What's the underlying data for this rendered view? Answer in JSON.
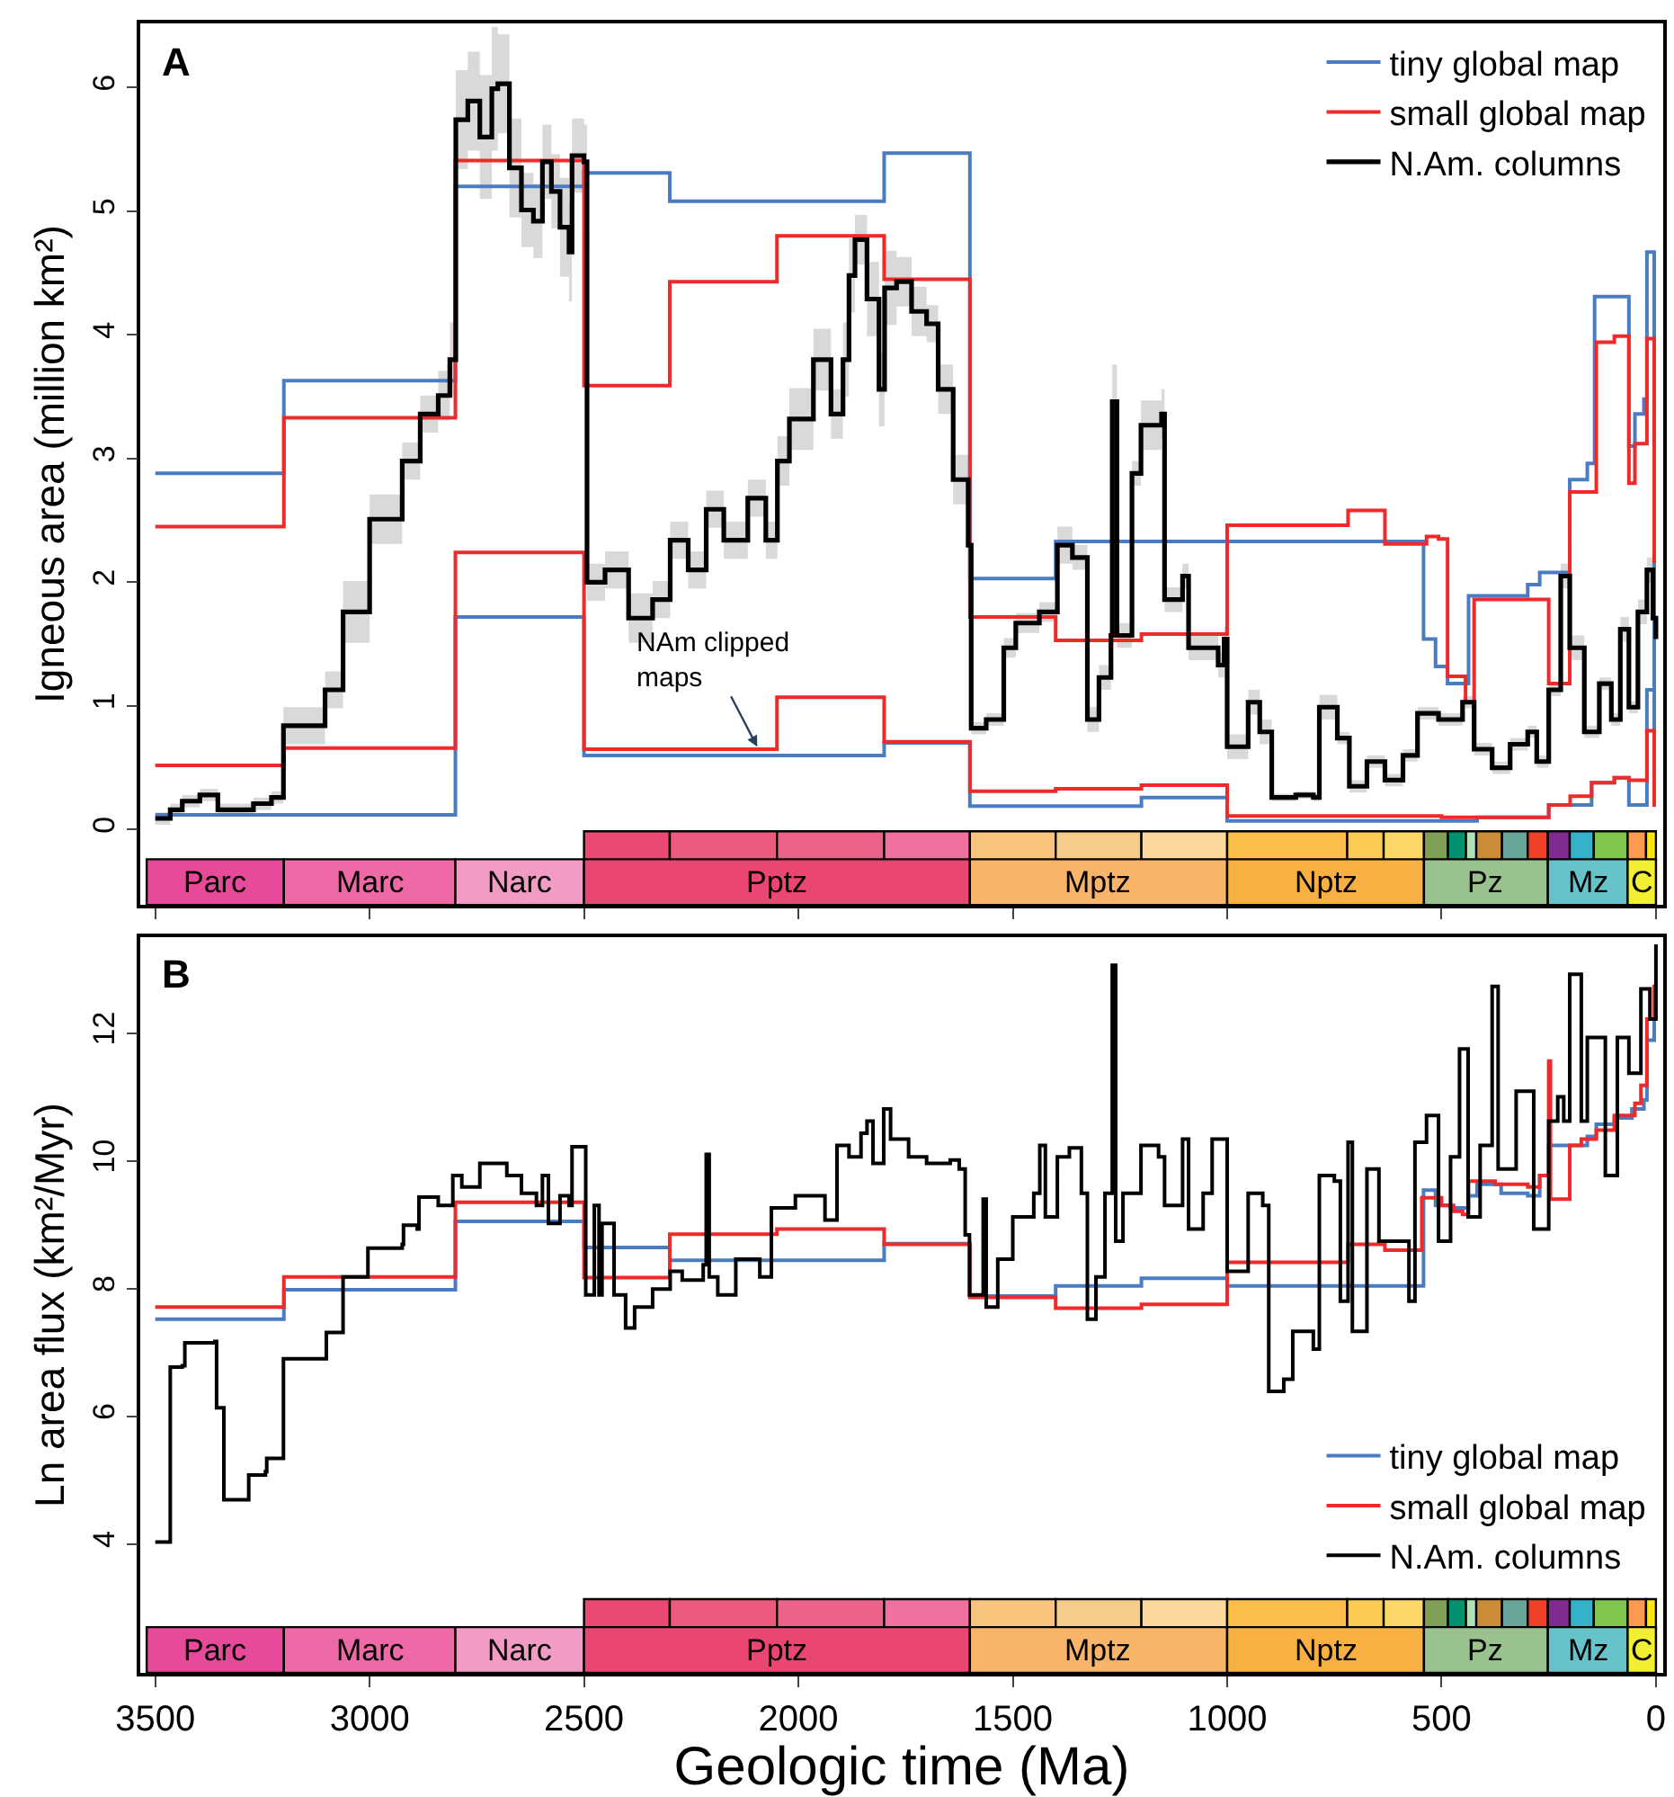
{
  "chart_data": [
    {
      "type": "step",
      "ylabel": "Igneous area (million km²)",
      "xlim": [
        3535,
        -17
      ],
      "ylim": [
        -0.61,
        6.52
      ],
      "xticks": [
        3500,
        3000,
        2500,
        2000,
        1500,
        1000,
        500,
        0
      ],
      "yticks": [
        0,
        1,
        2,
        3,
        4,
        5,
        6
      ],
      "tick_labels": "y",
      "legend": "top right",
      "annotations": [
        "A",
        {
          "text": "NAm clipped\nmaps",
          "x": 2096,
          "y": 0.67
        }
      ],
      "series": [
        {
          "name": "tiny global map",
          "color": "#4a7cc4",
          "x": [
            3500,
            3200,
            2800,
            2500,
            2300,
            1800,
            1600,
            1400,
            1000,
            542,
            514,
            486,
            437,
            299,
            271,
            201,
            160,
            143,
            63,
            49,
            28,
            21,
            4,
            0
          ],
          "values": [
            2.88,
            3.63,
            5.2,
            5.31,
            5.08,
            5.47,
            2.03,
            2.33,
            2.33,
            1.54,
            1.32,
            1.18,
            1.89,
            1.98,
            2.08,
            2.83,
            2.96,
            4.31,
            3.1,
            3.36,
            3.48,
            4.67,
            0.2,
            0.2
          ]
        },
        {
          "name": "small global map",
          "color": "#ee2a2a",
          "x": [
            3500,
            3200,
            2800,
            2500,
            2300,
            2050,
            1800,
            1600,
            1400,
            1200,
            1000,
            718,
            632,
            535,
            507,
            486,
            444,
            424,
            250,
            201,
            139,
            97,
            63,
            49,
            21,
            4,
            0
          ],
          "values": [
            2.45,
            3.33,
            5.41,
            3.59,
            4.43,
            4.8,
            4.45,
            1.72,
            1.53,
            1.58,
            2.46,
            2.58,
            2.31,
            2.37,
            2.35,
            1.24,
            1.03,
            1.86,
            1.18,
            2.73,
            3.94,
            3.99,
            2.8,
            3.12,
            3.97,
            2.17,
            2.17
          ]
        },
        {
          "color": "#4a7cc4",
          "x": [
            3500,
            2800,
            2500,
            1800,
            1600,
            1200,
            1000,
            417,
            250,
            150,
            97,
            63,
            21,
            4,
            0
          ],
          "values": [
            0.12,
            1.72,
            0.6,
            0.7,
            0.19,
            0.26,
            0.07,
            0.1,
            0.2,
            0.38,
            0.42,
            0.2,
            1.13,
            0.2,
            0.2
          ]
        },
        {
          "color": "#ee2a2a",
          "x": [
            3500,
            3200,
            2800,
            2500,
            2050,
            1800,
            1600,
            1400,
            1200,
            1000,
            500,
            250,
            200,
            150,
            97,
            63,
            21,
            4,
            0
          ],
          "values": [
            0.52,
            0.66,
            2.24,
            0.65,
            1.07,
            0.71,
            0.31,
            0.33,
            0.36,
            0.11,
            0.1,
            0.2,
            0.27,
            0.38,
            0.42,
            0.4,
            0.8,
            0.2,
            0.2
          ]
        },
        {
          "name": "N.Am. columns",
          "color": "#000000",
          "x": [
            3500,
            3465,
            3437,
            3396,
            3354,
            3271,
            3229,
            3201,
            3104,
            3062,
            3000,
            2924,
            2882,
            2840,
            2813,
            2799,
            2771,
            2743,
            2715,
            2701,
            2674,
            2646,
            2618,
            2597,
            2576,
            2556,
            2535,
            2528,
            2500,
            2493,
            2451,
            2396,
            2340,
            2299,
            2257,
            2215,
            2174,
            2118,
            2076,
            2049,
            2021,
            1965,
            1924,
            1896,
            1882,
            1868,
            1840,
            1812,
            1799,
            1771,
            1736,
            1701,
            1674,
            1639,
            1604,
            1597,
            1562,
            1521,
            1493,
            1438,
            1396,
            1361,
            1326,
            1299,
            1271,
            1268,
            1257,
            1222,
            1201,
            1153,
            1146,
            1104,
            1090,
            1021,
            1007,
            1000,
            951,
            924,
            896,
            840,
            799,
            785,
            743,
            715,
            674,
            632,
            590,
            556,
            507,
            451,
            424,
            382,
            340,
            299,
            278,
            250,
            222,
            201,
            167,
            132,
            104,
            83,
            63,
            42,
            21,
            7,
            0
          ],
          "values": [
            0.09,
            0.16,
            0.23,
            0.28,
            0.16,
            0.21,
            0.26,
            0.84,
            1.13,
            1.76,
            2.51,
            2.98,
            3.36,
            3.51,
            3.8,
            5.74,
            5.89,
            5.6,
            5.99,
            6.03,
            5.35,
            5.01,
            4.92,
            5.4,
            5.16,
            4.87,
            4.67,
            5.45,
            5.4,
            2.0,
            2.1,
            1.71,
            1.86,
            2.34,
            2.1,
            2.59,
            2.34,
            2.68,
            2.34,
            2.98,
            3.32,
            3.8,
            3.36,
            3.8,
            4.48,
            4.77,
            4.29,
            3.56,
            4.38,
            4.43,
            4.19,
            4.09,
            3.56,
            2.83,
            2.3,
            0.82,
            0.89,
            1.47,
            1.67,
            1.76,
            2.3,
            2.2,
            0.89,
            1.23,
            1.57,
            3.46,
            1.57,
            2.88,
            3.27,
            3.36,
            1.86,
            2.05,
            1.47,
            1.33,
            1.54,
            0.67,
            1.03,
            0.79,
            0.26,
            0.28,
            0.26,
            0.99,
            0.74,
            0.35,
            0.55,
            0.4,
            0.6,
            0.94,
            0.89,
            1.03,
            0.65,
            0.5,
            0.69,
            0.79,
            0.55,
            1.13,
            2.05,
            1.47,
            0.79,
            1.18,
            0.89,
            1.62,
            0.99,
            1.76,
            2.1,
            1.71,
            1.54
          ],
          "lower": [
            0.04,
            0.11,
            0.18,
            0.23,
            0.11,
            0.16,
            0.21,
            0.69,
            0.98,
            1.51,
            2.31,
            2.83,
            3.21,
            3.31,
            3.5,
            5.34,
            5.49,
            5.1,
            5.49,
            5.63,
            4.95,
            4.71,
            4.62,
            5.1,
            4.86,
            4.47,
            4.27,
            5.15,
            5.1,
            1.85,
            1.95,
            1.51,
            1.71,
            2.19,
            1.95,
            2.44,
            2.19,
            2.53,
            2.19,
            2.78,
            3.07,
            3.55,
            3.16,
            3.5,
            4.18,
            4.57,
            3.99,
            3.26,
            4.08,
            4.23,
            3.99,
            3.94,
            3.36,
            2.63,
            2.1,
            0.77,
            0.84,
            1.39,
            1.59,
            1.68,
            2.15,
            2.1,
            0.79,
            1.13,
            1.47,
            3.16,
            1.47,
            2.78,
            3.07,
            3.16,
            1.76,
            1.95,
            1.37,
            1.23,
            1.44,
            0.57,
            0.93,
            0.69,
            0.23,
            0.25,
            0.23,
            0.89,
            0.69,
            0.3,
            0.5,
            0.35,
            0.55,
            0.89,
            0.84,
            0.98,
            0.6,
            0.45,
            0.64,
            0.74,
            0.5,
            1.08,
            1.95,
            1.37,
            0.74,
            1.13,
            0.84,
            1.52,
            0.94,
            1.66,
            2.0,
            1.61,
            1.44
          ],
          "upper": [
            0.14,
            0.21,
            0.28,
            0.33,
            0.21,
            0.26,
            0.31,
            0.99,
            1.28,
            2.01,
            2.71,
            3.13,
            3.51,
            3.71,
            4.1,
            6.14,
            6.29,
            6.1,
            6.49,
            6.43,
            5.75,
            5.31,
            5.22,
            5.7,
            5.46,
            5.27,
            5.07,
            5.75,
            5.7,
            2.15,
            2.25,
            1.91,
            2.01,
            2.49,
            2.25,
            2.74,
            2.49,
            2.83,
            2.49,
            3.18,
            3.57,
            4.05,
            3.56,
            4.1,
            4.78,
            4.97,
            4.59,
            3.86,
            4.68,
            4.63,
            4.39,
            4.24,
            3.76,
            3.03,
            2.5,
            0.87,
            0.94,
            1.55,
            1.75,
            1.84,
            2.45,
            2.3,
            0.99,
            1.33,
            1.67,
            3.76,
            1.67,
            2.98,
            3.47,
            3.56,
            1.96,
            2.15,
            1.57,
            1.43,
            1.64,
            0.77,
            1.13,
            0.89,
            0.29,
            0.31,
            0.29,
            1.09,
            0.79,
            0.4,
            0.6,
            0.45,
            0.65,
            0.99,
            0.94,
            1.08,
            0.7,
            0.55,
            0.74,
            0.84,
            0.6,
            1.18,
            2.15,
            1.57,
            0.84,
            1.23,
            0.94,
            1.72,
            1.04,
            1.86,
            2.2,
            1.81,
            1.64
          ]
        }
      ],
      "bands": [
        {
          "axis": "x",
          "from": 3520,
          "to": 3200,
          "label": "Parc",
          "color": "#e84a9a"
        },
        {
          "axis": "x",
          "from": 3200,
          "to": 2800,
          "label": "Marc",
          "color": "#ee6aa6"
        },
        {
          "axis": "x",
          "from": 2800,
          "to": 2500,
          "label": "Narc",
          "color": "#f29bc4"
        },
        {
          "axis": "x",
          "from": 2500,
          "to": 1600,
          "label": "Pptz",
          "color": "#ea4672"
        },
        {
          "axis": "x",
          "from": 1600,
          "to": 1000,
          "label": "Mptz",
          "color": "#f8b468"
        },
        {
          "axis": "x",
          "from": 1000,
          "to": 541,
          "label": "Nptz",
          "color": "#f9b043"
        },
        {
          "axis": "x",
          "from": 541,
          "to": 252,
          "label": "Pz",
          "color": "#9ac28e"
        },
        {
          "axis": "x",
          "from": 252,
          "to": 66,
          "label": "Mz",
          "color": "#67c3c9"
        },
        {
          "axis": "x",
          "from": 66,
          "to": 0,
          "label": "C",
          "color": "#f2ee32"
        },
        {
          "axis": "x",
          "from": 2500,
          "to": 2300,
          "color": "#ea4a72"
        },
        {
          "axis": "x",
          "from": 2300,
          "to": 2050,
          "color": "#ec5a80"
        },
        {
          "axis": "x",
          "from": 2050,
          "to": 1800,
          "color": "#ed6288"
        },
        {
          "axis": "x",
          "from": 1800,
          "to": 1600,
          "color": "#f070a0"
        },
        {
          "axis": "x",
          "from": 1600,
          "to": 1400,
          "color": "#f8c47e"
        },
        {
          "axis": "x",
          "from": 1400,
          "to": 1200,
          "color": "#f5cc8a"
        },
        {
          "axis": "x",
          "from": 1200,
          "to": 1000,
          "color": "#fcd89a"
        },
        {
          "axis": "x",
          "from": 1000,
          "to": 720,
          "color": "#fbbe48"
        },
        {
          "axis": "x",
          "from": 720,
          "to": 635,
          "color": "#fccb55"
        },
        {
          "axis": "x",
          "from": 635,
          "to": 541,
          "color": "#fcd86a"
        },
        {
          "axis": "x",
          "from": 541,
          "to": 485,
          "color": "#7fa056"
        },
        {
          "axis": "x",
          "from": 485,
          "to": 443,
          "color": "#009270"
        },
        {
          "axis": "x",
          "from": 443,
          "to": 419,
          "color": "#b3e1b6"
        },
        {
          "axis": "x",
          "from": 419,
          "to": 359,
          "color": "#cb8c37"
        },
        {
          "axis": "x",
          "from": 359,
          "to": 299,
          "color": "#67a599"
        },
        {
          "axis": "x",
          "from": 299,
          "to": 252,
          "color": "#f04028"
        },
        {
          "axis": "x",
          "from": 252,
          "to": 201,
          "color": "#812b92"
        },
        {
          "axis": "x",
          "from": 201,
          "to": 145,
          "color": "#34b2c9"
        },
        {
          "axis": "x",
          "from": 145,
          "to": 66,
          "color": "#7fc64e"
        },
        {
          "axis": "x",
          "from": 66,
          "to": 23,
          "color": "#fd9a52"
        },
        {
          "axis": "x",
          "from": 23,
          "to": 0,
          "color": "#ffe619"
        }
      ]
    },
    {
      "type": "step",
      "xlabel": "Geologic time (Ma)",
      "ylabel": "Ln area flux (km²/Myr)",
      "xlim": [
        3535,
        -17
      ],
      "ylim": [
        1.98,
        13.5
      ],
      "xticks": [
        3500,
        3000,
        2500,
        2000,
        1500,
        1000,
        500,
        0
      ],
      "yticks": [
        4,
        6,
        8,
        10,
        12
      ],
      "legend": "bottom right",
      "annotations": [
        "B"
      ],
      "series": [
        {
          "name": "tiny global map",
          "color": "#4a7cc4",
          "x": [
            3500,
            3200,
            2800,
            2500,
            2300,
            1800,
            1600,
            1400,
            1200,
            1000,
            542,
            514,
            479,
            437,
            417,
            361,
            299,
            271,
            250,
            160,
            139,
            97,
            56,
            28,
            21,
            4,
            0
          ],
          "values": [
            7.52,
            7.98,
            9.05,
            8.64,
            8.44,
            8.7,
            7.88,
            8.04,
            8.16,
            8.04,
            9.54,
            9.3,
            9.26,
            9.45,
            9.63,
            9.49,
            9.45,
            9.77,
            10.24,
            10.38,
            10.57,
            10.67,
            10.81,
            10.95,
            11.89,
            12.22,
            12.22
          ]
        },
        {
          "name": "small global map",
          "color": "#ee2a2a",
          "x": [
            3500,
            3200,
            2800,
            2500,
            2300,
            2050,
            1800,
            1600,
            1400,
            1200,
            1000,
            718,
            632,
            546,
            500,
            472,
            451,
            437,
            375,
            299,
            271,
            250,
            246,
            201,
            174,
            139,
            97,
            49,
            35,
            21,
            4,
            0
          ],
          "values": [
            7.71,
            8.18,
            9.35,
            8.17,
            8.85,
            8.93,
            8.69,
            7.86,
            7.69,
            7.75,
            8.41,
            8.69,
            8.6,
            9.42,
            9.3,
            9.21,
            9.16,
            9.68,
            9.63,
            9.59,
            9.77,
            11.56,
            9.4,
            10.24,
            10.34,
            10.48,
            10.71,
            10.9,
            11.18,
            12.22,
            12.73,
            12.73
          ]
        },
        {
          "name": "N.Am. columns",
          "color": "#000000",
          "x": [
            3500,
            3468,
            3465,
            3437,
            3431,
            3361,
            3357,
            3343,
            3340,
            3285,
            3282,
            3243,
            3240,
            3204,
            3201,
            3104,
            3101,
            3065,
            3062,
            3007,
            3004,
            2924,
            2921,
            2889,
            2885,
            2840,
            2806,
            2785,
            2743,
            2708,
            2680,
            2646,
            2611,
            2597,
            2583,
            2556,
            2535,
            2528,
            2500,
            2496,
            2479,
            2476,
            2465,
            2458,
            2438,
            2430,
            2403,
            2382,
            2340,
            2299,
            2271,
            2222,
            2215,
            2208,
            2188,
            2146,
            2090,
            2063,
            2007,
            1938,
            1910,
            1882,
            1854,
            1840,
            1826,
            1801,
            1785,
            1743,
            1701,
            1646,
            1625,
            1611,
            1601,
            1569,
            1562,
            1535,
            1500,
            1451,
            1437,
            1424,
            1396,
            1368,
            1340,
            1326,
            1306,
            1285,
            1268,
            1260,
            1243,
            1201,
            1160,
            1146,
            1104,
            1090,
            1056,
            1035,
            1007,
            1000,
            951,
            917,
            903,
            868,
            847,
            799,
            785,
            750,
            736,
            718,
            708,
            674,
            646,
            618,
            576,
            562,
            535,
            507,
            479,
            458,
            438,
            410,
            382,
            368,
            326,
            285,
            250,
            229,
            215,
            201,
            174,
            160,
            118,
            90,
            63,
            35,
            14,
            0
          ],
          "values": [
            4.03,
            4.03,
            6.77,
            6.79,
            7.15,
            7.17,
            6.13,
            6.13,
            4.69,
            4.69,
            5.08,
            5.13,
            5.34,
            5.34,
            6.9,
            6.9,
            7.31,
            7.31,
            8.18,
            8.18,
            8.63,
            8.69,
            8.99,
            8.93,
            9.43,
            9.3,
            9.77,
            9.59,
            9.96,
            9.96,
            9.77,
            9.49,
            9.3,
            9.77,
            9.02,
            9.45,
            9.3,
            10.22,
            10.22,
            7.9,
            7.9,
            9.3,
            7.9,
            9.02,
            9.02,
            7.9,
            7.38,
            7.71,
            7.99,
            8.27,
            8.13,
            8.37,
            10.1,
            8.18,
            7.9,
            8.46,
            8.18,
            9.26,
            9.45,
            9.07,
            10.24,
            10.06,
            10.43,
            10.62,
            9.96,
            10.81,
            10.34,
            10.06,
            9.96,
            10.01,
            9.87,
            8.84,
            7.9,
            9.4,
            7.71,
            8.46,
            9.12,
            9.49,
            10.24,
            9.12,
            10.06,
            10.2,
            9.49,
            7.52,
            8.18,
            9.49,
            13.06,
            8.74,
            9.49,
            10.24,
            10.06,
            9.3,
            10.34,
            8.93,
            9.49,
            10.34,
            10.34,
            8.27,
            9.49,
            9.3,
            6.39,
            6.58,
            7.33,
            7.05,
            9.77,
            9.68,
            7.8,
            10.29,
            7.33,
            9.87,
            8.74,
            8.74,
            7.8,
            10.29,
            10.71,
            8.74,
            10.06,
            11.75,
            9.12,
            10.24,
            12.73,
            9.87,
            11.09,
            8.93,
            10.62,
            11.0,
            10.62,
            12.92,
            10.62,
            11.93,
            9.77,
            11.93,
            11.37,
            12.69,
            12.22,
            13.39
          ]
        }
      ],
      "bands": [
        {
          "axis": "x",
          "from": 3520,
          "to": 3200,
          "label": "Parc",
          "color": "#e84a9a"
        },
        {
          "axis": "x",
          "from": 3200,
          "to": 2800,
          "label": "Marc",
          "color": "#ee6aa6"
        },
        {
          "axis": "x",
          "from": 2800,
          "to": 2500,
          "label": "Narc",
          "color": "#f29bc4"
        },
        {
          "axis": "x",
          "from": 2500,
          "to": 1600,
          "label": "Pptz",
          "color": "#ea4672"
        },
        {
          "axis": "x",
          "from": 1600,
          "to": 1000,
          "label": "Mptz",
          "color": "#f8b468"
        },
        {
          "axis": "x",
          "from": 1000,
          "to": 541,
          "label": "Nptz",
          "color": "#f9b043"
        },
        {
          "axis": "x",
          "from": 541,
          "to": 252,
          "label": "Pz",
          "color": "#9ac28e"
        },
        {
          "axis": "x",
          "from": 252,
          "to": 66,
          "label": "Mz",
          "color": "#67c3c9"
        },
        {
          "axis": "x",
          "from": 66,
          "to": 0,
          "label": "C",
          "color": "#f2ee32"
        },
        {
          "axis": "x",
          "from": 2500,
          "to": 2300,
          "color": "#ea4a72"
        },
        {
          "axis": "x",
          "from": 2300,
          "to": 2050,
          "color": "#ec5a80"
        },
        {
          "axis": "x",
          "from": 2050,
          "to": 1800,
          "color": "#ed6288"
        },
        {
          "axis": "x",
          "from": 1800,
          "to": 1600,
          "color": "#f070a0"
        },
        {
          "axis": "x",
          "from": 1600,
          "to": 1400,
          "color": "#f8c47e"
        },
        {
          "axis": "x",
          "from": 1400,
          "to": 1200,
          "color": "#f5cc8a"
        },
        {
          "axis": "x",
          "from": 1200,
          "to": 1000,
          "color": "#fcd89a"
        },
        {
          "axis": "x",
          "from": 1000,
          "to": 720,
          "color": "#fbbe48"
        },
        {
          "axis": "x",
          "from": 720,
          "to": 635,
          "color": "#fccb55"
        },
        {
          "axis": "x",
          "from": 635,
          "to": 541,
          "color": "#fcd86a"
        },
        {
          "axis": "x",
          "from": 541,
          "to": 485,
          "color": "#7fa056"
        },
        {
          "axis": "x",
          "from": 485,
          "to": 443,
          "color": "#009270"
        },
        {
          "axis": "x",
          "from": 443,
          "to": 419,
          "color": "#b3e1b6"
        },
        {
          "axis": "x",
          "from": 419,
          "to": 359,
          "color": "#cb8c37"
        },
        {
          "axis": "x",
          "from": 359,
          "to": 299,
          "color": "#67a599"
        },
        {
          "axis": "x",
          "from": 299,
          "to": 252,
          "color": "#f04028"
        },
        {
          "axis": "x",
          "from": 252,
          "to": 201,
          "color": "#812b92"
        },
        {
          "axis": "x",
          "from": 201,
          "to": 145,
          "color": "#34b2c9"
        },
        {
          "axis": "x",
          "from": 145,
          "to": 66,
          "color": "#7fc64e"
        },
        {
          "axis": "x",
          "from": 66,
          "to": 23,
          "color": "#fd9a52"
        },
        {
          "axis": "x",
          "from": 23,
          "to": 0,
          "color": "#ffe619"
        }
      ]
    }
  ]
}
